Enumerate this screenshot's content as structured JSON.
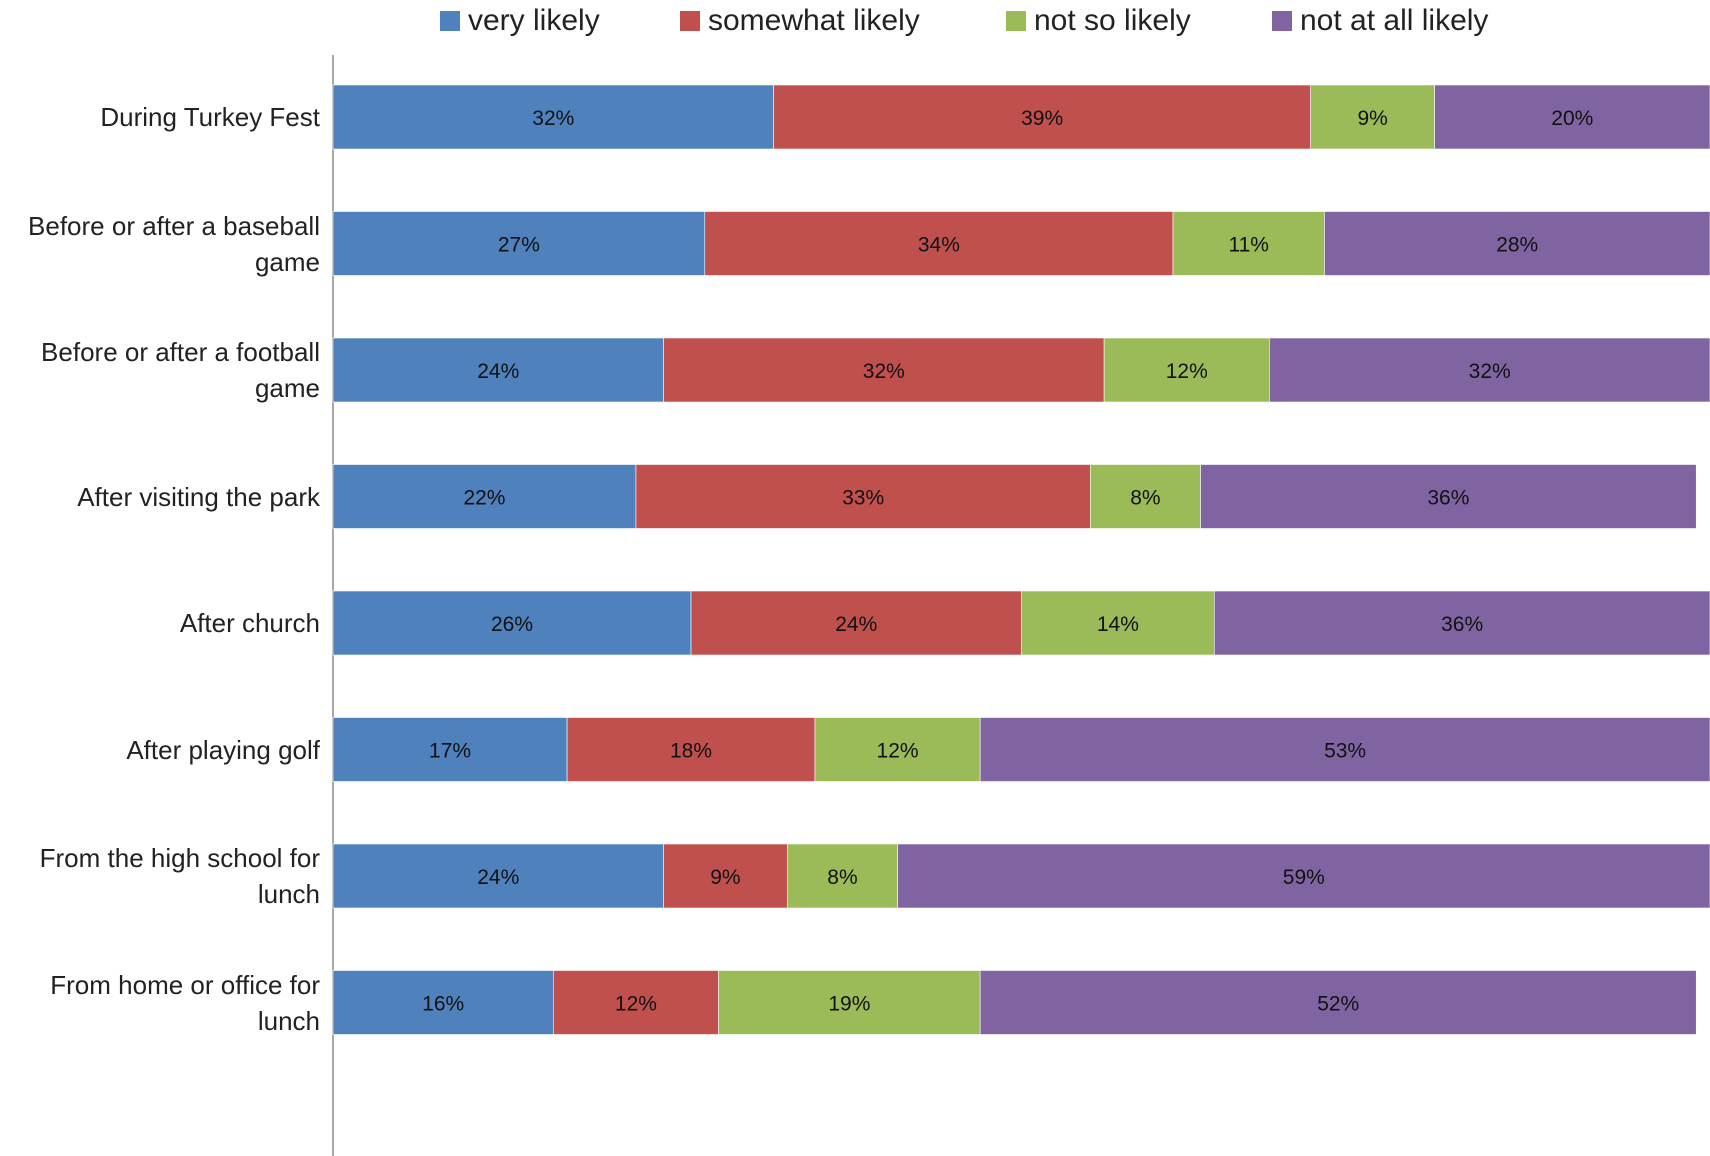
{
  "chart_data": {
    "type": "bar",
    "orientation": "horizontal",
    "stacked": true,
    "title": "",
    "xlabel": "",
    "ylabel": "",
    "xlim": [
      0,
      100
    ],
    "legend_position": "top",
    "grid": false,
    "categories": [
      "During Turkey Fest",
      "Before or after a baseball game",
      "Before or after a football game",
      "After visiting the park",
      "After church",
      "After playing golf",
      "From the high school for lunch",
      "From home or office for lunch"
    ],
    "series": [
      {
        "name": "very likely",
        "color": "#4f81bd",
        "values": [
          32,
          27,
          24,
          22,
          26,
          17,
          24,
          16
        ],
        "labels": [
          "32%",
          "27%",
          "24%",
          "22%",
          "26%",
          "17%",
          "24%",
          "16%"
        ]
      },
      {
        "name": "somewhat likely",
        "color": "#c0504d",
        "values": [
          39,
          34,
          32,
          33,
          24,
          18,
          9,
          12
        ],
        "labels": [
          "39%",
          "34%",
          "32%",
          "33%",
          "24%",
          "18%",
          "9%",
          "12%"
        ]
      },
      {
        "name": "not so likely",
        "color": "#9bbb59",
        "values": [
          9,
          11,
          12,
          8,
          14,
          12,
          8,
          19
        ],
        "labels": [
          "9%",
          "11%",
          "12%",
          "8%",
          "14%",
          "12%",
          "8%",
          "19%"
        ]
      },
      {
        "name": "not at all likely",
        "color": "#8064a2",
        "values": [
          20,
          28,
          32,
          36,
          36,
          53,
          59,
          52
        ],
        "labels": [
          "20%",
          "28%",
          "32%",
          "36%",
          "36%",
          "53%",
          "59%",
          "52%"
        ]
      }
    ]
  }
}
